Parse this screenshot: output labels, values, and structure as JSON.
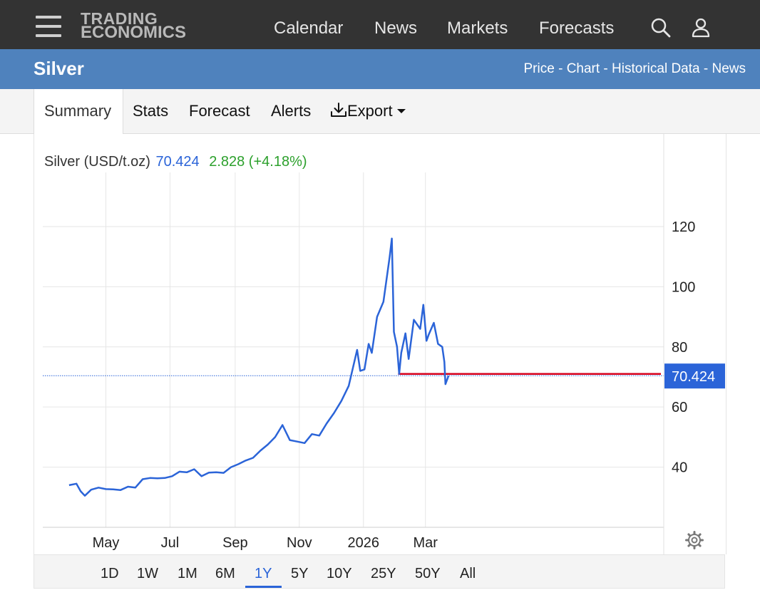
{
  "header": {
    "logo_line1": "TRADING",
    "logo_line2": "ECONOMICS",
    "nav": [
      "Calendar",
      "News",
      "Markets",
      "Forecasts"
    ],
    "icons": [
      "menu-icon",
      "search-icon",
      "user-icon"
    ]
  },
  "titlebar": {
    "title": "Silver",
    "links": [
      "Price",
      "Chart",
      "Historical Data",
      "News"
    ],
    "separator": " - "
  },
  "tabs": {
    "items": [
      "Summary",
      "Stats",
      "Forecast",
      "Alerts",
      "Export"
    ],
    "active": "Summary"
  },
  "quote": {
    "name": "Silver (USD/t.oz)",
    "price": "70.424",
    "change": "2.828 (+4.18%)"
  },
  "ranges": {
    "items": [
      "1D",
      "1W",
      "1M",
      "6M",
      "1Y",
      "5Y",
      "10Y",
      "25Y",
      "50Y",
      "All"
    ],
    "active": "1Y"
  },
  "colors": {
    "accent_blue": "#2b64d8",
    "positive_green": "#2ca02c",
    "header_dark": "#333333",
    "title_blue": "#4f82bd",
    "reference_red": "#d6001c"
  },
  "chart_data": {
    "type": "line",
    "series": [
      {
        "name": "Silver (USD/t.oz)",
        "x": [
          "2025-03-27",
          "2025-04-03",
          "2025-04-07",
          "2025-04-11",
          "2025-04-17",
          "2025-04-24",
          "2025-05-01",
          "2025-05-08",
          "2025-05-15",
          "2025-05-22",
          "2025-05-29",
          "2025-06-05",
          "2025-06-12",
          "2025-06-19",
          "2025-06-26",
          "2025-07-03",
          "2025-07-10",
          "2025-07-17",
          "2025-07-24",
          "2025-07-31",
          "2025-08-07",
          "2025-08-14",
          "2025-08-21",
          "2025-08-28",
          "2025-09-04",
          "2025-09-11",
          "2025-09-18",
          "2025-09-25",
          "2025-10-02",
          "2025-10-09",
          "2025-10-16",
          "2025-10-23",
          "2025-10-30",
          "2025-11-06",
          "2025-11-13",
          "2025-11-20",
          "2025-11-27",
          "2025-12-04",
          "2025-12-11",
          "2025-12-18",
          "2025-12-26",
          "2025-12-29",
          "2026-01-02",
          "2026-01-06",
          "2026-01-09",
          "2026-01-14",
          "2026-01-20",
          "2026-01-26",
          "2026-01-28",
          "2026-01-30",
          "2026-02-02",
          "2026-02-04",
          "2026-02-06",
          "2026-02-10",
          "2026-02-13",
          "2026-02-18",
          "2026-02-24",
          "2026-02-27",
          "2026-03-02",
          "2026-03-04",
          "2026-03-09",
          "2026-03-13",
          "2026-03-17",
          "2026-03-19",
          "2026-03-20",
          "2026-03-23"
        ],
        "y": [
          34.0,
          34.5,
          32.0,
          30.5,
          32.5,
          33.2,
          32.7,
          32.6,
          32.4,
          33.5,
          33.2,
          36.0,
          36.4,
          36.3,
          36.4,
          37.0,
          38.5,
          38.3,
          39.3,
          37.0,
          38.2,
          38.3,
          38.1,
          40.0,
          41.0,
          42.2,
          43.1,
          45.5,
          47.5,
          50.0,
          54.0,
          49.0,
          48.5,
          48.0,
          51.0,
          50.5,
          54.5,
          58.0,
          62.0,
          67.0,
          79.0,
          72.0,
          72.5,
          81.0,
          78.0,
          90.0,
          95.0,
          110.0,
          116.0,
          85.0,
          80.0,
          71.0,
          78.0,
          84.5,
          76.0,
          89.0,
          86.0,
          94.0,
          82.0,
          84.0,
          88.0,
          81.0,
          80.0,
          75.0,
          67.6,
          70.424
        ]
      }
    ],
    "x_ticks": [
      "May",
      "Jul",
      "Sep",
      "Nov",
      "2026",
      "Mar"
    ],
    "y_ticks": [
      40,
      60,
      80,
      100,
      120
    ],
    "ylim": [
      20,
      138
    ],
    "last_value_label": "70.424",
    "reference_line_value": 71.0,
    "grid": true,
    "y_axis_side": "right"
  }
}
